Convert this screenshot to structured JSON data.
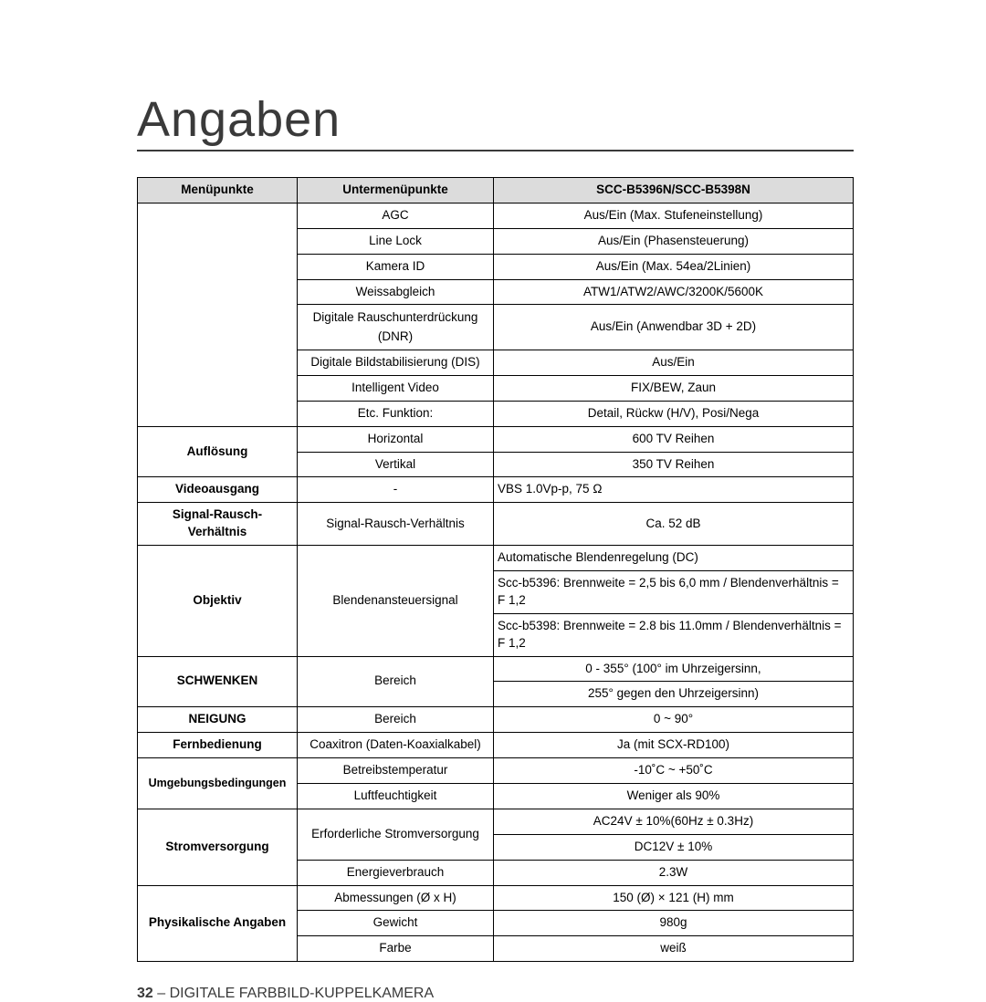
{
  "title": "Angaben",
  "header": {
    "col1": "Menüpunkte",
    "col2": "Untermenüpunkte",
    "col3": "SCC-B5396N/SCC-B5398N"
  },
  "rows": {
    "agc": {
      "sub": "AGC",
      "val": "Aus/Ein (Max. Stufeneinstellung)"
    },
    "linelock": {
      "sub": "Line Lock",
      "val": "Aus/Ein (Phasensteuerung)"
    },
    "kameraid": {
      "sub": "Kamera ID",
      "val": "Aus/Ein (Max. 54ea/2Linien)"
    },
    "weiss": {
      "sub": "Weissabgleich",
      "val": "ATW1/ATW2/AWC/3200K/5600K"
    },
    "dnr": {
      "sub": "Digitale Rauschunterdrückung (DNR)",
      "val": "Aus/Ein (Anwendbar 3D + 2D)"
    },
    "dis": {
      "sub": "Digitale Bildstabilisierung (DIS)",
      "val": "Aus/Ein"
    },
    "iv": {
      "sub": "Intelligent Video",
      "val": "FIX/BEW, Zaun"
    },
    "etc": {
      "sub": "Etc. Funktion:",
      "val": "Detail, Rückw (H/V), Posi/Nega"
    },
    "auflosung": {
      "name": "Auflösung",
      "hor": "Horizontal",
      "horv": "600 TV Reihen",
      "ver": "Vertikal",
      "verv": "350 TV Reihen"
    },
    "video": {
      "name": "Videoausgang",
      "sub": "-",
      "val": "VBS 1.0Vp-p, 75 Ω"
    },
    "snr": {
      "name": "Signal-Rausch-Verhältnis",
      "sub": "Signal-Rausch-Verhältnis",
      "val": "Ca. 52 dB"
    },
    "obj": {
      "name": "Objektiv",
      "sub": "Blendenansteuersignal",
      "l1": "Automatische Blendenregelung (DC)",
      "l2": "Scc-b5396:  Brennweite = 2,5 bis 6,0 mm / Blendenverhältnis = F 1,2",
      "l3": "Scc-b5398:  Brennweite = 2.8 bis 11.0mm / Blendenverhältnis = F 1,2"
    },
    "schwenken": {
      "name": "SCHWENKEN",
      "sub": "Bereich",
      "l1": "0 - 355° (100° im Uhrzeigersinn,",
      "l2": "255° gegen den Uhrzeigersinn)"
    },
    "neigung": {
      "name": "NEIGUNG",
      "sub": "Bereich",
      "val": "0 ~ 90°"
    },
    "fern": {
      "name": "Fernbedienung",
      "sub": "Coaxitron (Daten-Koaxialkabel)",
      "val": "Ja (mit SCX-RD100)"
    },
    "umg": {
      "name": "Umgebungsbedingungen",
      "temp": "Betreibstemperatur",
      "tempv": "-10˚C ~ +50˚C",
      "luft": "Luftfeuchtigkeit",
      "luftv": "Weniger als 90%"
    },
    "strom": {
      "name": "Stromversorgung",
      "erf": "Erforderliche Stromversorgung",
      "l1": "AC24V ± 10%(60Hz ± 0.3Hz)",
      "l2": "DC12V ± 10%",
      "ener": "Energieverbrauch",
      "enerv": "2.3W"
    },
    "phys": {
      "name": "Physikalische Angaben",
      "abm": "Abmessungen (Ø x H)",
      "abmv": "150 (Ø) × 121 (H) mm",
      "gew": "Gewicht",
      "gewv": "980g",
      "far": "Farbe",
      "farv": "weiß"
    }
  },
  "footer": {
    "page": "32",
    "sep": " – ",
    "text": "DIGITALE FARBBILD-KUPPELKAMERA"
  }
}
